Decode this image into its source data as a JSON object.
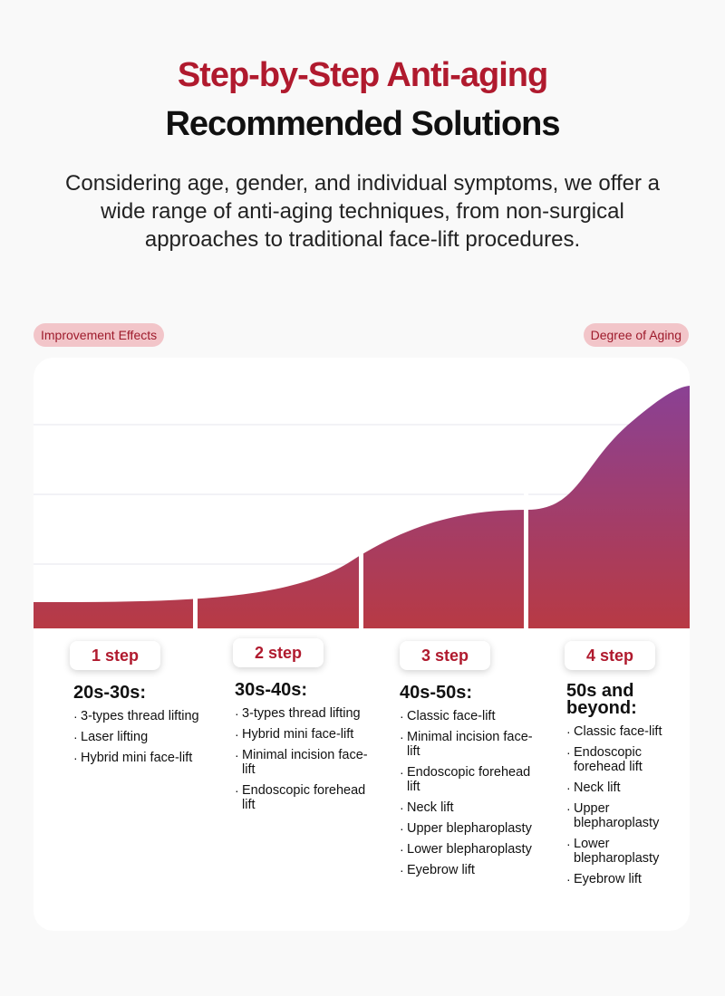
{
  "header": {
    "title_line1": "Step-by-Step Anti-aging",
    "title_line2": "Recommended Solutions",
    "intro": "Considering age, gender, and individual symptoms, we offer a wide range of anti-aging techniques, from non-surgical approaches to traditional face-lift procedures."
  },
  "chart": {
    "y_label": "Improvement Effects",
    "x_label": "Degree of Aging",
    "gradient_top": "#8a4194",
    "gradient_bottom": "#b83a44"
  },
  "steps": [
    {
      "badge": "1 step",
      "age": "20s-30s:",
      "items": [
        "3-types thread lifting",
        "Laser lifting",
        "Hybrid mini face-lift"
      ]
    },
    {
      "badge": "2 step",
      "age": "30s-40s:",
      "items": [
        "3-types thread lifting",
        "Hybrid mini face-lift",
        "Minimal incision face-lift",
        "Endoscopic forehead lift"
      ]
    },
    {
      "badge": "3 step",
      "age": "40s-50s:",
      "items": [
        "Classic face-lift",
        "Minimal incision face-lift",
        "Endoscopic forehead lift",
        "Neck lift",
        "Upper blepharoplasty",
        "Lower blepharoplasty",
        "Eyebrow lift"
      ]
    },
    {
      "badge": "4 step",
      "age": "50s and beyond:",
      "items": [
        "Classic face-lift",
        "Endoscopic forehead lift",
        "Neck lift",
        "Upper blepharoplasty",
        "Lower blepharoplasty",
        "Eyebrow lift"
      ]
    }
  ]
}
